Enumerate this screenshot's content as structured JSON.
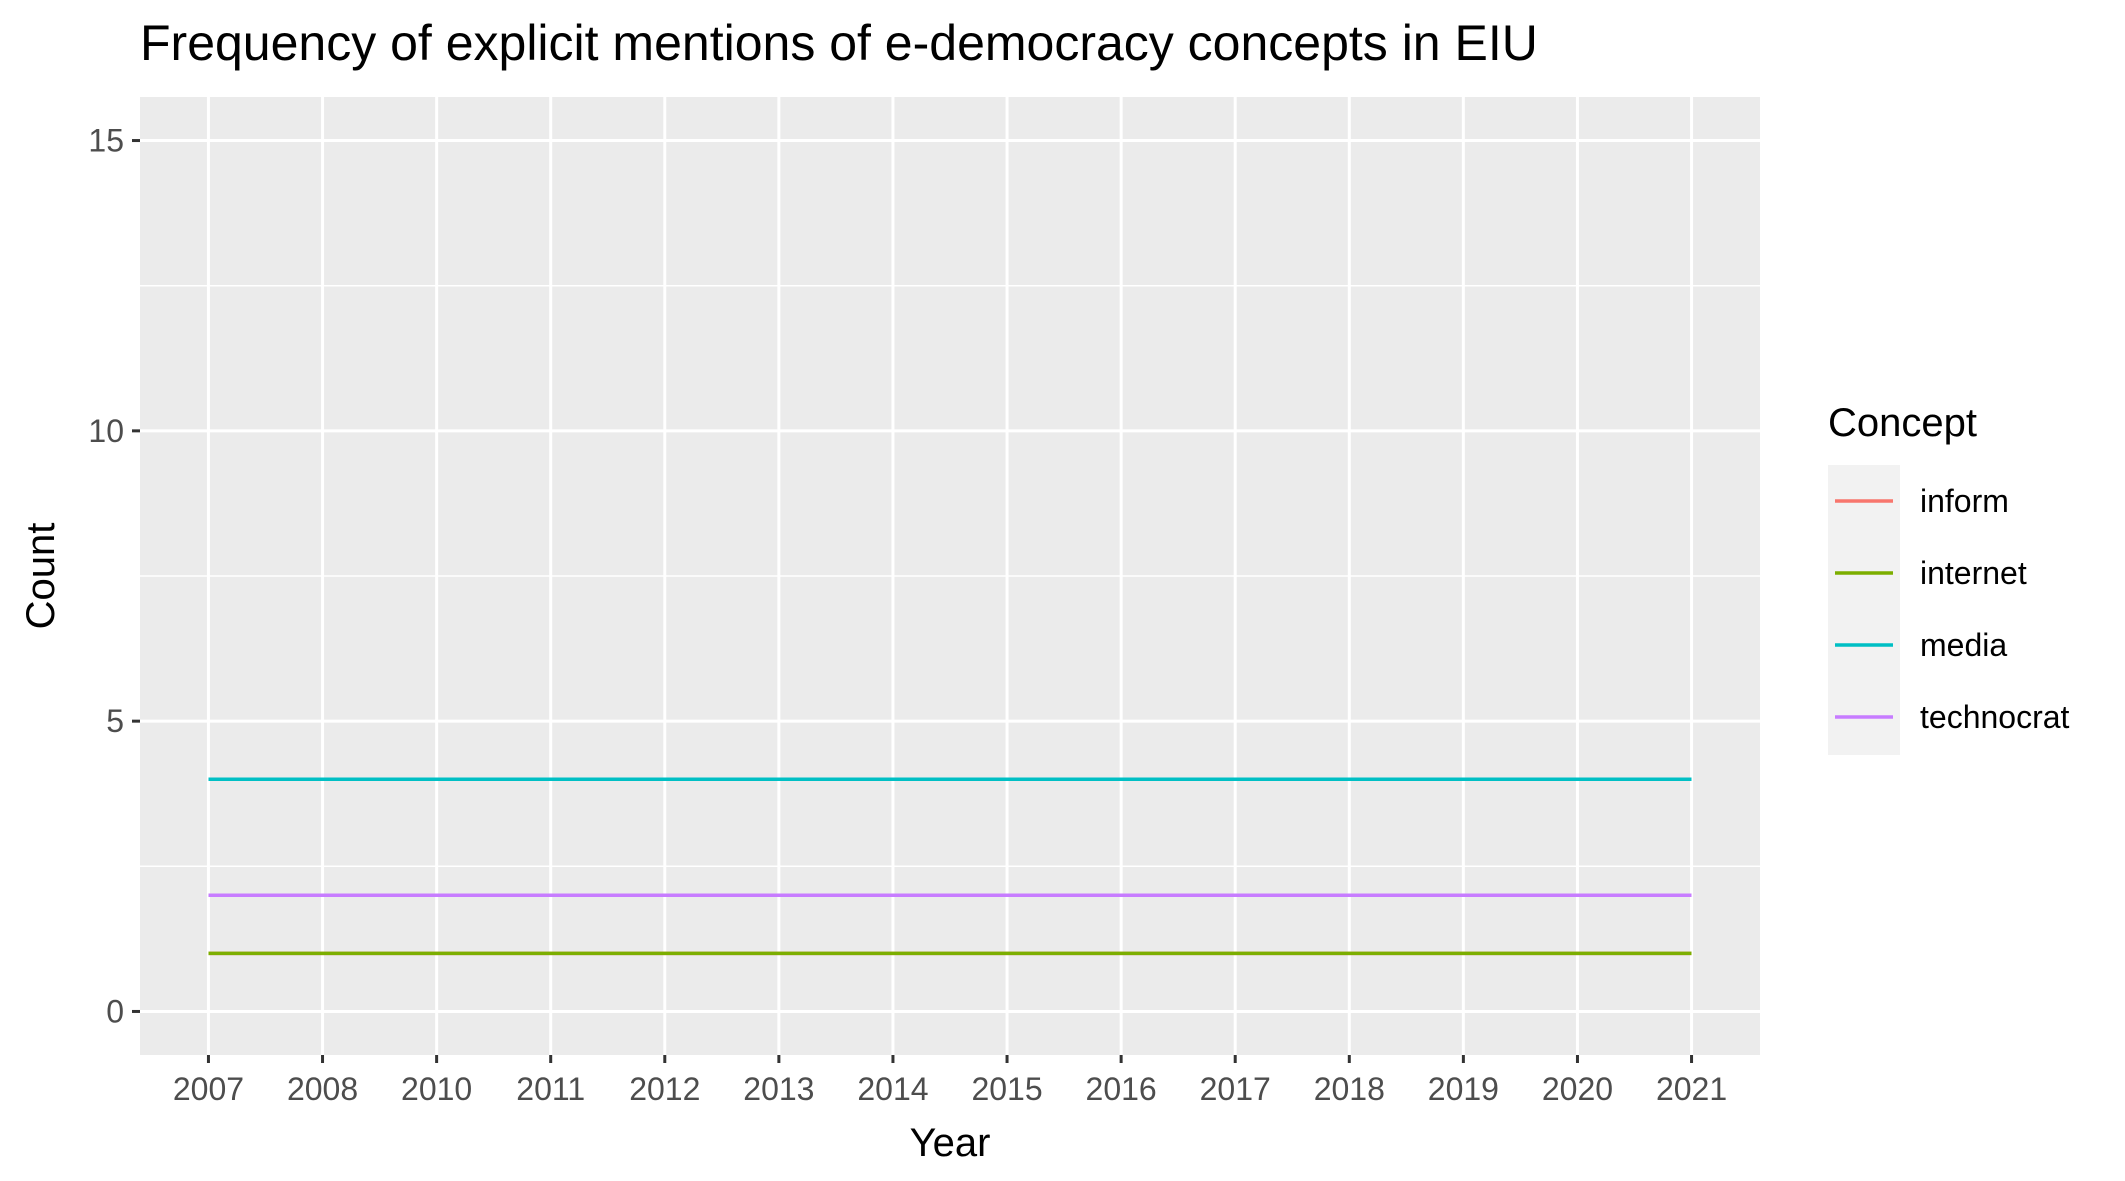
{
  "chart_data": {
    "type": "line",
    "title": "Frequency of explicit mentions of e-democracy concepts in EIU",
    "xlabel": "Year",
    "ylabel": "Count",
    "x": [
      "2007",
      "2008",
      "2010",
      "2011",
      "2012",
      "2013",
      "2014",
      "2015",
      "2016",
      "2017",
      "2018",
      "2019",
      "2020",
      "2021"
    ],
    "ylim": [
      -0.75,
      15.75
    ],
    "yticks": [
      0,
      5,
      10,
      15
    ],
    "grid": true,
    "legend": {
      "title": "Concept",
      "position": "right"
    },
    "series": [
      {
        "name": "inform",
        "color": "#F8766D",
        "values": [
          1,
          1,
          1,
          1,
          1,
          1,
          1,
          1,
          1,
          1,
          1,
          1,
          1,
          1
        ]
      },
      {
        "name": "internet",
        "color": "#7CAE00",
        "values": [
          1,
          1,
          1,
          1,
          1,
          1,
          1,
          1,
          1,
          1,
          1,
          1,
          1,
          1
        ]
      },
      {
        "name": "media",
        "color": "#00BFC4",
        "values": [
          4,
          4,
          4,
          4,
          4,
          4,
          4,
          4,
          4,
          4,
          4,
          4,
          4,
          4
        ]
      },
      {
        "name": "technocrat",
        "color": "#C77CFF",
        "values": [
          2,
          2,
          2,
          2,
          2,
          2,
          2,
          2,
          2,
          2,
          2,
          2,
          2,
          2
        ]
      }
    ]
  }
}
